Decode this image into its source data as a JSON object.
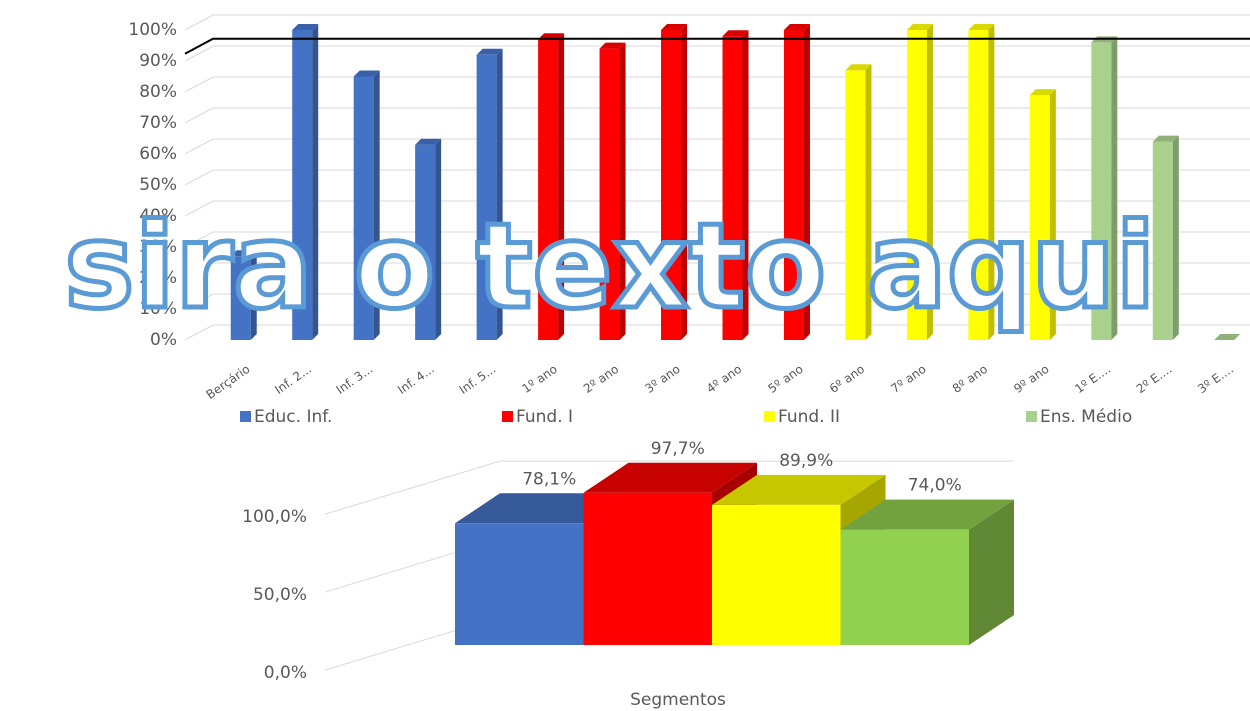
{
  "watermark": "sira o texto aqui",
  "chart_data": [
    {
      "type": "bar3d",
      "categories": [
        "Berçário",
        "Inf. 2...",
        "Inf. 3...",
        "Inf. 4...",
        "Inf. 5...",
        "1º ano",
        "2º ano",
        "3º ano",
        "4º ano",
        "5º ano",
        "6º ano",
        "7º ano",
        "8º ano",
        "9º ano",
        "1º E....",
        "2º E....",
        "3º E...."
      ],
      "series": [
        {
          "name": "Educ. Inf.",
          "color": "#4472c4",
          "values": [
            27,
            100,
            85,
            63,
            92,
            null,
            null,
            null,
            null,
            null,
            null,
            null,
            null,
            null,
            null,
            null,
            null
          ]
        },
        {
          "name": "Fund. I",
          "color": "#ff0000",
          "values": [
            null,
            null,
            null,
            null,
            null,
            97,
            94,
            100,
            98,
            100,
            null,
            null,
            null,
            null,
            null,
            null,
            null
          ]
        },
        {
          "name": "Fund. II",
          "color": "#ffff00",
          "values": [
            null,
            null,
            null,
            null,
            null,
            null,
            null,
            null,
            null,
            null,
            87,
            100,
            100,
            79,
            null,
            null,
            null
          ]
        },
        {
          "name": "Ens. Médio",
          "color": "#a9d18e",
          "values": [
            null,
            null,
            null,
            null,
            null,
            null,
            null,
            null,
            null,
            null,
            null,
            null,
            null,
            null,
            96,
            64,
            0
          ]
        }
      ],
      "reference_line": 93,
      "ylim": [
        0,
        100
      ],
      "yticks": [
        {
          "value": 0,
          "label": "0%"
        },
        {
          "value": 10,
          "label": "10%"
        },
        {
          "value": 20,
          "label": "20%"
        },
        {
          "value": 30,
          "label": "30%"
        },
        {
          "value": 40,
          "label": "40%"
        },
        {
          "value": 50,
          "label": "50%"
        },
        {
          "value": 60,
          "label": "60%"
        },
        {
          "value": 70,
          "label": "70%"
        },
        {
          "value": 80,
          "label": "80%"
        },
        {
          "value": 90,
          "label": "90%"
        },
        {
          "value": 100,
          "label": "100%"
        }
      ],
      "grid": true,
      "legend": "bottom"
    },
    {
      "type": "bar3d-wide",
      "x_label": "Segmentos",
      "values": [
        78.1,
        97.7,
        89.9,
        74.0
      ],
      "value_labels": [
        "78,1%",
        "97,7%",
        "89,9%",
        "74,0%"
      ],
      "colors": [
        "#4472c4",
        "#ff0000",
        "#ffff00",
        "#92d050"
      ],
      "ylim": [
        0,
        120
      ],
      "yticks": [
        {
          "value": 0,
          "label": "0,0%"
        },
        {
          "value": 50,
          "label": "50,0%"
        },
        {
          "value": 100,
          "label": "100,0%"
        }
      ],
      "grid": true
    }
  ]
}
